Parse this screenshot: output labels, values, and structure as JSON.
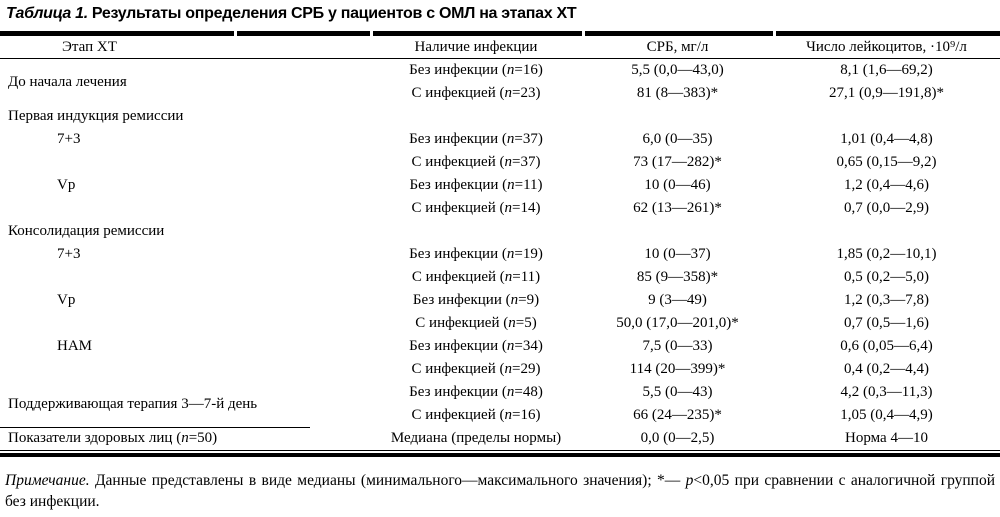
{
  "page": {
    "background": "#ffffff",
    "text_color": "#000000"
  },
  "title": {
    "label": "Таблица 1.",
    "text": "Результаты определения СРБ у пациентов с ОМЛ на этапах ХТ"
  },
  "table": {
    "headers": {
      "stage": "Этап ХТ",
      "infection": "Наличие инфекции",
      "crp": "СРБ, мг/л",
      "wbc": "Число лейкоцитов, ·10⁹/л"
    },
    "rows": [
      {
        "stage": "До начала лечения",
        "infection": "Без инфекции (n=16)",
        "crp": "5,5 (0,0—43,0)",
        "wbc": "8,1 (1,6—69,2)"
      },
      {
        "infection": "С инфекцией (n=23)",
        "crp": "81 (8—383)*",
        "wbc": "27,1 (0,9—191,8)*"
      },
      {
        "stage": "Первая индукция ремиссии"
      },
      {
        "stage": "7+3",
        "infection": "Без инфекции (n=37)",
        "crp": "6,0 (0—35)",
        "wbc": "1,01 (0,4—4,8)"
      },
      {
        "infection": "С инфекцией (n=37)",
        "crp": "73 (17—282)*",
        "wbc": "0,65 (0,15—9,2)"
      },
      {
        "stage": "Vp",
        "infection": "Без инфекции (n=11)",
        "crp": "10 (0—46)",
        "wbc": "1,2 (0,4—4,6)"
      },
      {
        "infection": "С инфекцией (n=14)",
        "crp": "62 (13—261)*",
        "wbc": "0,7 (0,0—2,9)"
      },
      {
        "stage": "Консолидация ремиссии"
      },
      {
        "stage": "7+3",
        "infection": "Без инфекции (n=19)",
        "crp": "10 (0—37)",
        "wbc": "1,85 (0,2—10,1)"
      },
      {
        "infection": "С инфекцией (n=11)",
        "crp": "85 (9—358)*",
        "wbc": "0,5 (0,2—5,0)"
      },
      {
        "stage": "Vp",
        "infection": "Без инфекции (n=9)",
        "crp": "9 (3—49)",
        "wbc": "1,2 (0,3—7,8)"
      },
      {
        "infection": "С инфекцией (n=5)",
        "crp": "50,0 (17,0—201,0)*",
        "wbc": "0,7 (0,5—1,6)"
      },
      {
        "stage": "НАМ",
        "infection": "Без инфекции (n=34)",
        "crp": "7,5 (0—33)",
        "wbc": "0,6 (0,05—6,4)"
      },
      {
        "infection": "С инфекцией (n=29)",
        "crp": "114 (20—399)*",
        "wbc": "0,4 (0,2—4,4)"
      },
      {
        "stage": "Поддерживающая терапия 3—7-й день",
        "infection": "Без инфекции (n=48)",
        "crp": "5,5 (0—43)",
        "wbc": "4,2 (0,3—11,3)"
      },
      {
        "infection": "С инфекцией (n=16)",
        "crp": "66 (24—235)*",
        "wbc": "1,05 (0,4—4,9)"
      },
      {
        "stage": "Показатели здоровых лиц (n=50)",
        "infection": "Медиана (пределы нормы)",
        "crp": "0,0 (0—2,5)",
        "wbc": "Норма 4—10"
      }
    ]
  },
  "footnote": {
    "label": "Примечание.",
    "text": "Данные представлены в виде медианы (минимального—максимального значения); *— p<0,05 при сравнении с аналогичной группой без инфекции."
  }
}
